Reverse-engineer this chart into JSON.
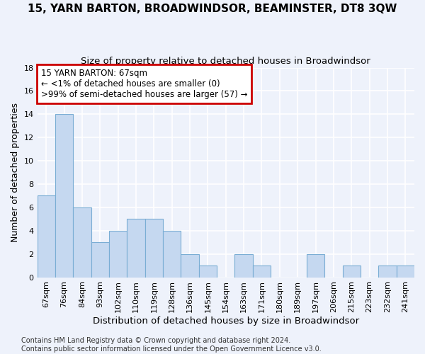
{
  "title": "15, YARN BARTON, BROADWINDSOR, BEAMINSTER, DT8 3QW",
  "subtitle": "Size of property relative to detached houses in Broadwindsor",
  "xlabel": "Distribution of detached houses by size in Broadwindsor",
  "ylabel": "Number of detached properties",
  "categories": [
    "67sqm",
    "76sqm",
    "84sqm",
    "93sqm",
    "102sqm",
    "110sqm",
    "119sqm",
    "128sqm",
    "136sqm",
    "145sqm",
    "154sqm",
    "163sqm",
    "171sqm",
    "180sqm",
    "189sqm",
    "197sqm",
    "206sqm",
    "215sqm",
    "223sqm",
    "232sqm",
    "241sqm"
  ],
  "values": [
    7,
    14,
    6,
    3,
    4,
    5,
    5,
    4,
    2,
    1,
    0,
    2,
    1,
    0,
    0,
    2,
    0,
    1,
    0,
    1,
    1
  ],
  "bar_color": "#c5d8f0",
  "bar_edge_color": "#7aadd4",
  "annotation_line1": "15 YARN BARTON: 67sqm",
  "annotation_line2": "← <1% of detached houses are smaller (0)",
  "annotation_line3": ">99% of semi-detached houses are larger (57) →",
  "annotation_box_color": "#ffffff",
  "annotation_box_edge_color": "#cc0000",
  "ylim": [
    0,
    18
  ],
  "yticks": [
    0,
    2,
    4,
    6,
    8,
    10,
    12,
    14,
    16,
    18
  ],
  "footer": "Contains HM Land Registry data © Crown copyright and database right 2024.\nContains public sector information licensed under the Open Government Licence v3.0.",
  "background_color": "#eef2fb",
  "grid_color": "#ffffff",
  "title_fontsize": 11,
  "subtitle_fontsize": 9.5,
  "xlabel_fontsize": 9.5,
  "ylabel_fontsize": 9,
  "tick_fontsize": 8,
  "footer_fontsize": 7
}
